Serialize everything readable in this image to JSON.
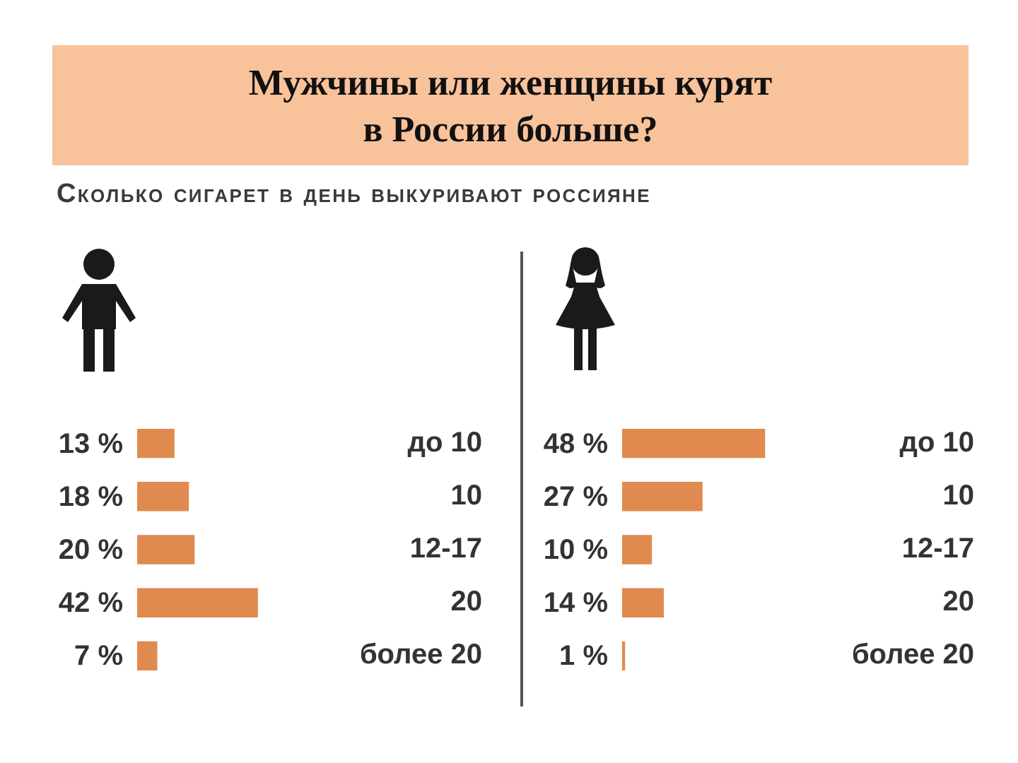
{
  "chart_data": [
    {
      "type": "bar",
      "orientation": "horizontal",
      "title": "Мужчины или женщины курят в России больше?",
      "subtitle": "Сколько сигарет в день выкуривают россияне",
      "categories": [
        "до 10",
        "10",
        "12-17",
        "20",
        "более 20"
      ],
      "values": [
        13,
        18,
        20,
        42,
        7
      ],
      "value_labels": [
        "13 %",
        "18 %",
        "20 %",
        "42 %",
        "7 %"
      ],
      "color": "#e08a50",
      "tick_labels": "y",
      "grid": false
    },
    {
      "type": "bar",
      "orientation": "horizontal",
      "categories": [
        "до 10",
        "10",
        "12-17",
        "20",
        "более 20"
      ],
      "values": [
        48,
        27,
        10,
        14,
        1
      ],
      "value_labels": [
        "48 %",
        "27 %",
        "10 %",
        "14 %",
        "1 %"
      ],
      "color": "#e08a50",
      "tick_labels": "y",
      "grid": false
    }
  ]
}
